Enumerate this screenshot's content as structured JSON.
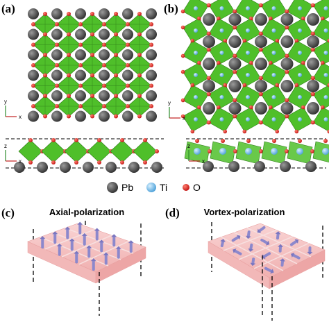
{
  "panels": [
    {
      "label": "(a)"
    },
    {
      "label": "(b)"
    },
    {
      "label": "(c)",
      "title": "Axial-polarization"
    },
    {
      "label": "(d)",
      "title": "Vortex-polarization"
    }
  ],
  "axes": [
    {
      "vertical": "y",
      "horizontal": "x"
    },
    {
      "vertical": "y",
      "horizontal": "x"
    },
    {
      "vertical": "z",
      "horizontal": "x"
    },
    {
      "vertical": "z",
      "horizontal": "x"
    }
  ],
  "legend": [
    {
      "label": "Pb"
    },
    {
      "label": "Ti"
    },
    {
      "label": "O"
    }
  ]
}
